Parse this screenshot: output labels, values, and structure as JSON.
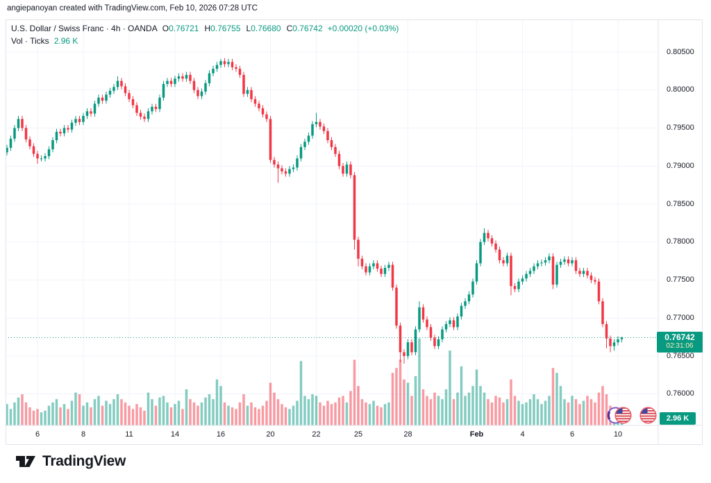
{
  "attribution": "angiepanoyan created with TradingView.com, Feb 10, 2026 07:28 UTC",
  "logo": {
    "text": "TradingView"
  },
  "legend": {
    "title": "U.S. Dollar / Swiss Franc · 4h · OANDA",
    "ohlc": [
      {
        "k": "O",
        "v": "0.76721"
      },
      {
        "k": "H",
        "v": "0.76755"
      },
      {
        "k": "L",
        "v": "0.76680"
      },
      {
        "k": "C",
        "v": "0.76742"
      }
    ],
    "change": "+0.00020 (+0.03%)",
    "vol_label": "Vol · Ticks",
    "vol_value": "2.96 K"
  },
  "price_label": {
    "price": "0.76742",
    "countdown": "02:31:06"
  },
  "volume_axis_label": "2.96 K",
  "colors": {
    "up": "#089981",
    "down": "#f23645",
    "vol_up": "rgba(8,153,129,0.5)",
    "vol_down": "rgba(242,54,69,0.5)",
    "grid": "#f0f3fa",
    "border": "#e0e3eb",
    "axis_text": "#131722",
    "accent": "#089981",
    "countdown_text": "#f6f0b8"
  },
  "price_scale": {
    "ticks": [
      {
        "label": "0.80500",
        "value": 0.805
      },
      {
        "label": "0.80000",
        "value": 0.8
      },
      {
        "label": "0.79500",
        "value": 0.795
      },
      {
        "label": "0.79000",
        "value": 0.79
      },
      {
        "label": "0.78500",
        "value": 0.785
      },
      {
        "label": "0.78000",
        "value": 0.78
      },
      {
        "label": "0.77500",
        "value": 0.775
      },
      {
        "label": "0.77000",
        "value": 0.77
      },
      {
        "label": "0.76500",
        "value": 0.765
      },
      {
        "label": "0.76000",
        "value": 0.76
      }
    ]
  },
  "time_scale": {
    "ticks": [
      {
        "label": "6",
        "i": 8
      },
      {
        "label": "8",
        "i": 20
      },
      {
        "label": "11",
        "i": 32
      },
      {
        "label": "14",
        "i": 44
      },
      {
        "label": "16",
        "i": 56
      },
      {
        "label": "20",
        "i": 69
      },
      {
        "label": "22",
        "i": 81
      },
      {
        "label": "25",
        "i": 92
      },
      {
        "label": "28",
        "i": 105
      },
      {
        "label": "Feb",
        "i": 123,
        "bold": true
      },
      {
        "label": "4",
        "i": 135
      },
      {
        "label": "6",
        "i": 148
      },
      {
        "label": "10",
        "i": 160
      }
    ]
  },
  "chart_data": {
    "type": "candlestick+volume",
    "title": "U.S. Dollar / Swiss Franc, 4h, OANDA",
    "symbol": "USD/CHF",
    "interval": "4h",
    "exchange": "OANDA",
    "legend_ohlc": {
      "open": 0.76721,
      "high": 0.76755,
      "low": 0.7668,
      "close": 0.76742
    },
    "change_abs": 0.0002,
    "change_pct": 0.03,
    "volume_ticks_current": 2960,
    "x_axis_date_labels": [
      "6",
      "8",
      "11",
      "14",
      "16",
      "20",
      "22",
      "25",
      "28",
      "Feb",
      "4",
      "6",
      "10"
    ],
    "y_axis_range": [
      0.7595,
      0.8055
    ],
    "grid": true,
    "price_line_value": 0.76742,
    "countdown": "02:31:06",
    "candles_per_day": 6,
    "first_open": 0.7918,
    "closes": [
      0.7924,
      0.7936,
      0.795,
      0.7962,
      0.795,
      0.7935,
      0.7926,
      0.7916,
      0.791,
      0.791,
      0.7913,
      0.7922,
      0.7934,
      0.7945,
      0.7943,
      0.795,
      0.7948,
      0.7957,
      0.7962,
      0.7958,
      0.7966,
      0.7972,
      0.7969,
      0.7982,
      0.799,
      0.7986,
      0.7994,
      0.7999,
      0.8004,
      0.8012,
      0.8005,
      0.7996,
      0.7988,
      0.798,
      0.797,
      0.7965,
      0.7962,
      0.7972,
      0.7978,
      0.7975,
      0.799,
      0.8008,
      0.8012,
      0.8008,
      0.8015,
      0.8018,
      0.8015,
      0.802,
      0.8012,
      0.8,
      0.7992,
      0.7998,
      0.8009,
      0.8022,
      0.8028,
      0.8033,
      0.8038,
      0.8034,
      0.8037,
      0.803,
      0.8028,
      0.802,
      0.7995,
      0.8,
      0.7988,
      0.7982,
      0.7976,
      0.7968,
      0.7962,
      0.7908,
      0.7902,
      0.7897,
      0.7893,
      0.789,
      0.7896,
      0.7898,
      0.791,
      0.7925,
      0.7932,
      0.794,
      0.7955,
      0.7958,
      0.7952,
      0.7946,
      0.7934,
      0.7925,
      0.7916,
      0.79,
      0.789,
      0.7902,
      0.7888,
      0.7803,
      0.7778,
      0.7768,
      0.776,
      0.7768,
      0.7772,
      0.7765,
      0.7758,
      0.7766,
      0.777,
      0.774,
      0.769,
      0.7655,
      0.765,
      0.7668,
      0.7655,
      0.7685,
      0.7714,
      0.7698,
      0.7688,
      0.7674,
      0.7663,
      0.7672,
      0.7685,
      0.7692,
      0.7697,
      0.7688,
      0.7702,
      0.7716,
      0.7722,
      0.7731,
      0.7748,
      0.7772,
      0.78,
      0.7812,
      0.7805,
      0.7798,
      0.779,
      0.7776,
      0.7772,
      0.7782,
      0.7742,
      0.7738,
      0.7748,
      0.7752,
      0.7758,
      0.7762,
      0.7768,
      0.7772,
      0.7773,
      0.7776,
      0.7781,
      0.7744,
      0.777,
      0.7774,
      0.7777,
      0.7772,
      0.7776,
      0.7762,
      0.7758,
      0.7762,
      0.7756,
      0.775,
      0.7748,
      0.7722,
      0.7692,
      0.7673,
      0.7663,
      0.7668,
      0.7672,
      0.76742
    ],
    "default_wick": 0.0004,
    "wick_overrides": {
      "8": {
        "low": 0.7903
      },
      "29": {
        "high": 0.8018
      },
      "56": {
        "high": 0.8041
      },
      "71": {
        "low": 0.7878
      },
      "81": {
        "high": 0.797
      },
      "91": {
        "low": 0.779
      },
      "92": {
        "low": 0.7768
      },
      "103": {
        "low": 0.7642
      },
      "104": {
        "low": 0.764
      },
      "108": {
        "high": 0.7722
      },
      "125": {
        "high": 0.7818
      },
      "132": {
        "low": 0.773
      },
      "143": {
        "low": 0.7738
      },
      "157": {
        "low": 0.766
      },
      "158": {
        "low": 0.7655
      },
      "159": {
        "low": 0.7657
      }
    },
    "last_candle": {
      "open": 0.76721,
      "high": 0.76755,
      "low": 0.7668,
      "close": 0.76742
    },
    "volumes_k": [
      6.5,
      5,
      7,
      8.5,
      9.5,
      7,
      5.5,
      4.5,
      5,
      4,
      4.5,
      6,
      7,
      8,
      5.5,
      6.5,
      5,
      7.5,
      10,
      9.5,
      6,
      7,
      5.5,
      8,
      9,
      6,
      7.5,
      6.5,
      8,
      9.5,
      8,
      7,
      6,
      5,
      6.5,
      5.5,
      4.5,
      10,
      8,
      6,
      8.5,
      9,
      7,
      5.5,
      6.5,
      7.5,
      5,
      11,
      8,
      7,
      6,
      7,
      8.5,
      9.5,
      8,
      14,
      12,
      7,
      6,
      5.5,
      5,
      7,
      9.5,
      6,
      7,
      5.5,
      5,
      6,
      7.5,
      13,
      10,
      8,
      6.5,
      5.5,
      5,
      6,
      7.5,
      19.6,
      9,
      8,
      9.5,
      9,
      7,
      6,
      7.5,
      6.5,
      7,
      8.5,
      9,
      7,
      10.5,
      20,
      12,
      8,
      7,
      6.5,
      7.5,
      6,
      5.5,
      6.5,
      7,
      16,
      17.5,
      20,
      14,
      13,
      9,
      15,
      26.5,
      11,
      9,
      8,
      10,
      9,
      8,
      11,
      22.8,
      8,
      10,
      18,
      9,
      10,
      12,
      17,
      12,
      10,
      8,
      7,
      9,
      8.5,
      7,
      8,
      14,
      9,
      7.5,
      6.5,
      7,
      8,
      9.5,
      8,
      6.5,
      7.5,
      9,
      17.5,
      16,
      12,
      8,
      7,
      9,
      8,
      6.5,
      7.5,
      9,
      8,
      7,
      10,
      12,
      9.5,
      6,
      5,
      4,
      2.96
    ]
  }
}
